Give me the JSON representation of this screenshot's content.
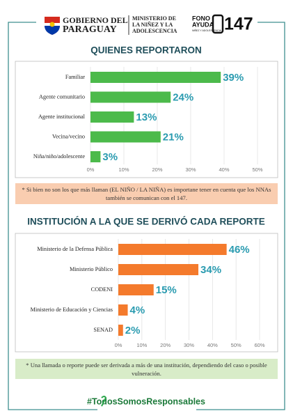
{
  "header": {
    "gov_line1": "GOBIERNO DEL",
    "gov_line2": "PARAGUAY",
    "ministry": [
      "MINISTERIO DE",
      "LA NIÑEZ Y LA",
      "ADOLESCENCIA"
    ],
    "fono": [
      "FONO",
      "AYUDA",
      "NIÑEZ Y ADOLESCENCIA"
    ],
    "number": "147"
  },
  "chart_data": [
    {
      "type": "hbar",
      "title": "QUIENES REPORTARON",
      "categories": [
        "Familiar",
        "Agente comunitario",
        "Agente institucional",
        "Vecina/vecino",
        "Niña/niño/adolescente"
      ],
      "values": [
        39,
        24,
        13,
        21,
        3
      ],
      "value_labels": [
        "39%",
        "24%",
        "13%",
        "21%",
        "3%"
      ],
      "color": "#4cba4b",
      "xlim": [
        0,
        50
      ],
      "xticks": [
        {
          "value": 0,
          "label": "0%"
        },
        {
          "value": 10,
          "label": "10%"
        },
        {
          "value": 20,
          "label": "20%"
        },
        {
          "value": 30,
          "label": "30%"
        },
        {
          "value": 40,
          "label": "40%"
        },
        {
          "value": 50,
          "label": "50%"
        }
      ],
      "grid": true,
      "note": "* Si bien no son los que más llaman (EL NIÑO / LA NIÑA) es importane tener en cuenta que los NNAs también se comunican con el 147."
    },
    {
      "type": "hbar",
      "title": "INSTITUCIÓN A LA QUE SE DERIVÓ CADA REPORTE",
      "categories": [
        "Ministerio de la Defensa Pública",
        "Ministerio Público",
        "CODENI",
        "Ministerio de Educación y Ciencias",
        "SENAD"
      ],
      "values": [
        46,
        34,
        15,
        4,
        2
      ],
      "value_labels": [
        "46%",
        "34%",
        "15%",
        "4%",
        "2%"
      ],
      "color": "#f47a2c",
      "xlim": [
        0,
        60
      ],
      "xticks": [
        {
          "value": 0,
          "label": "0%"
        },
        {
          "value": 10,
          "label": "10%"
        },
        {
          "value": 20,
          "label": "20%"
        },
        {
          "value": 30,
          "label": "30%"
        },
        {
          "value": 40,
          "label": "40%"
        },
        {
          "value": 50,
          "label": "50%"
        },
        {
          "value": 60,
          "label": "60%"
        }
      ],
      "grid": true,
      "note": "* Una llamada o reporte puede ser derivada a más de una institución, dependiendo del caso o posible vulneración."
    }
  ],
  "footer": "#TodosSomosResponsables"
}
